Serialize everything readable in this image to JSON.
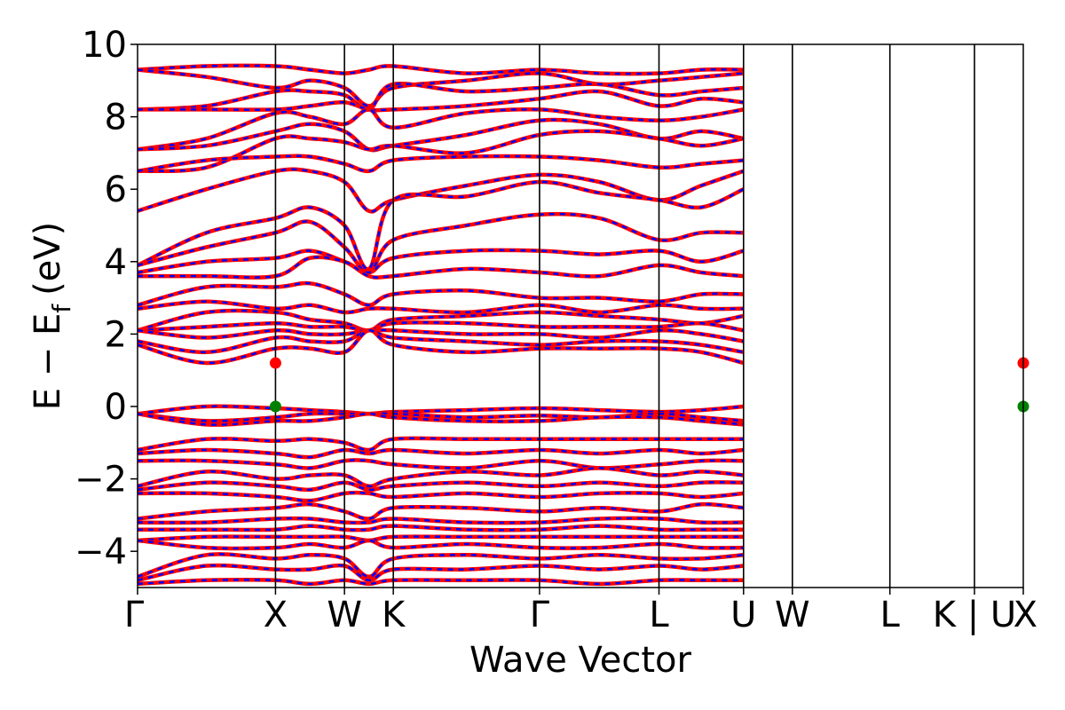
{
  "chart_data": {
    "type": "line",
    "title": "",
    "xlabel": "Wave Vector",
    "ylabel": "E − E",
    "ylabel_subscript": "f",
    "ylabel_unit": "(eV)",
    "ylim": [
      -5,
      10
    ],
    "yticks": [
      10,
      8,
      6,
      4,
      2,
      0,
      -2,
      -4
    ],
    "ytick_labels": [
      "10",
      "8",
      "6",
      "4",
      "2",
      "0",
      "−2",
      "−4"
    ],
    "kpath": [
      {
        "label": "Γ",
        "x": 0.0
      },
      {
        "label": "X",
        "x": 1.0
      },
      {
        "label": "W",
        "x": 1.5
      },
      {
        "label": "K",
        "x": 1.854
      },
      {
        "label": "Γ",
        "x": 2.914
      },
      {
        "label": "L",
        "x": 3.78
      },
      {
        "label": "U",
        "x": 4.393
      },
      {
        "label": "W",
        "x": 4.747
      },
      {
        "label": "L",
        "x": 5.454
      },
      {
        "label": "K | U",
        "x": 6.067
      },
      {
        "label": "X",
        "x": 6.421
      }
    ],
    "xlim": [
      0,
      6.421
    ],
    "grid": false,
    "legend": "none",
    "colors": {
      "band_solid": "#ff0000",
      "band_dashed": "#0000ff",
      "cbm_marker": "#ff0000",
      "vbm_marker": "#008000"
    },
    "markers": [
      {
        "name": "CBM",
        "x": 1.0,
        "y": 1.2,
        "color": "#ff0000"
      },
      {
        "name": "VBM",
        "x": 1.0,
        "y": 0.0,
        "color": "#008000"
      },
      {
        "name": "CBM",
        "x": 6.421,
        "y": 1.2,
        "color": "#ff0000"
      },
      {
        "name": "VBM",
        "x": 6.421,
        "y": 0.0,
        "color": "#008000"
      }
    ],
    "series": [
      {
        "y": [
          9.3,
          9.4,
          9.4,
          9.3,
          9.2,
          9.3,
          9.4,
          9.2,
          9.3,
          9.2,
          9.2,
          9.3,
          9.3
        ]
      },
      {
        "y": [
          9.3,
          9.1,
          8.8,
          9.0,
          8.8,
          8.3,
          8.8,
          9.0,
          9.2,
          8.9,
          9.0,
          9.1,
          9.2
        ]
      },
      {
        "y": [
          8.2,
          8.3,
          8.7,
          8.7,
          8.6,
          8.2,
          8.9,
          8.7,
          8.8,
          8.9,
          8.6,
          8.7,
          8.8
        ]
      },
      {
        "y": [
          8.2,
          8.2,
          8.2,
          8.3,
          8.4,
          8.2,
          8.2,
          8.3,
          8.5,
          8.7,
          8.3,
          8.5,
          8.4
        ]
      },
      {
        "y": [
          7.1,
          7.4,
          8.1,
          8.0,
          7.8,
          8.2,
          7.7,
          8.1,
          8.2,
          8.0,
          7.9,
          8.0,
          8.2
        ]
      },
      {
        "y": [
          7.1,
          7.2,
          7.6,
          7.8,
          7.6,
          7.1,
          7.2,
          7.5,
          7.9,
          7.8,
          7.4,
          7.6,
          7.4
        ]
      },
      {
        "y": [
          6.5,
          6.6,
          7.4,
          7.4,
          7.3,
          7.1,
          7.2,
          7.0,
          7.5,
          7.6,
          7.4,
          7.2,
          7.4
        ]
      },
      {
        "y": [
          6.5,
          6.8,
          6.9,
          6.9,
          6.7,
          6.5,
          6.8,
          6.9,
          6.9,
          6.8,
          6.6,
          6.7,
          6.8
        ]
      },
      {
        "y": [
          5.4,
          6.0,
          6.5,
          6.5,
          6.2,
          5.4,
          5.7,
          6.1,
          6.4,
          6.2,
          5.7,
          6.1,
          6.5
        ]
      },
      {
        "y": [
          3.9,
          4.8,
          5.2,
          5.5,
          5.0,
          3.8,
          5.7,
          5.8,
          6.2,
          5.9,
          5.7,
          5.5,
          6.0
        ]
      },
      {
        "y": [
          3.9,
          4.4,
          4.8,
          5.1,
          4.4,
          3.7,
          4.6,
          5.0,
          5.3,
          5.2,
          4.6,
          4.8,
          4.8
        ]
      },
      {
        "y": [
          3.7,
          4.0,
          4.1,
          4.3,
          4.0,
          3.7,
          4.1,
          4.3,
          4.3,
          4.2,
          4.3,
          4.0,
          4.3
        ]
      },
      {
        "y": [
          3.6,
          3.6,
          3.6,
          4.1,
          4.0,
          3.6,
          3.6,
          3.8,
          3.7,
          3.6,
          3.9,
          3.7,
          3.6
        ]
      },
      {
        "y": [
          2.8,
          3.3,
          3.3,
          3.4,
          3.1,
          2.8,
          3.1,
          3.2,
          3.0,
          3.0,
          2.9,
          3.1,
          3.1
        ]
      },
      {
        "y": [
          2.7,
          2.9,
          2.7,
          2.8,
          2.6,
          2.7,
          2.7,
          2.6,
          2.8,
          2.6,
          2.8,
          2.7,
          2.7
        ]
      },
      {
        "y": [
          2.1,
          2.6,
          2.6,
          2.4,
          2.3,
          2.1,
          2.4,
          2.5,
          2.6,
          2.5,
          2.4,
          2.3,
          2.5
        ]
      },
      {
        "y": [
          2.1,
          2.2,
          2.3,
          2.2,
          2.2,
          2.1,
          2.3,
          2.3,
          2.2,
          2.2,
          2.2,
          2.3,
          2.1
        ]
      },
      {
        "y": [
          2.1,
          1.9,
          2.1,
          2.0,
          2.0,
          2.1,
          2.1,
          2.0,
          2.0,
          1.9,
          2.1,
          2.0,
          1.8
        ]
      },
      {
        "y": [
          1.8,
          1.5,
          1.9,
          1.8,
          1.8,
          2.1,
          1.9,
          1.8,
          1.7,
          1.8,
          1.8,
          1.7,
          1.5
        ]
      },
      {
        "y": [
          1.7,
          1.2,
          1.6,
          1.6,
          1.5,
          2.1,
          1.7,
          1.5,
          1.6,
          1.6,
          1.6,
          1.5,
          1.2
        ]
      },
      {
        "y": [
          -0.2,
          0.0,
          -0.05,
          -0.1,
          -0.15,
          -0.2,
          -0.15,
          -0.1,
          -0.05,
          -0.1,
          -0.15,
          -0.1,
          0.0
        ]
      },
      {
        "y": [
          -0.2,
          -0.4,
          -0.3,
          -0.2,
          -0.2,
          -0.2,
          -0.2,
          -0.3,
          -0.25,
          -0.3,
          -0.2,
          -0.3,
          -0.4
        ]
      },
      {
        "y": [
          -0.2,
          -0.5,
          -0.4,
          -0.4,
          -0.3,
          -0.2,
          -0.3,
          -0.4,
          -0.4,
          -0.3,
          -0.3,
          -0.4,
          -0.5
        ]
      },
      {
        "y": [
          -1.2,
          -0.9,
          -0.95,
          -0.9,
          -1.0,
          -1.2,
          -0.9,
          -0.9,
          -0.9,
          -0.9,
          -0.9,
          -0.9,
          -0.9
        ]
      },
      {
        "y": [
          -1.3,
          -1.2,
          -1.3,
          -1.4,
          -1.2,
          -1.3,
          -1.2,
          -1.3,
          -1.2,
          -1.3,
          -1.2,
          -1.3,
          -1.2
        ]
      },
      {
        "y": [
          -1.5,
          -1.5,
          -1.6,
          -1.7,
          -1.5,
          -1.5,
          -1.6,
          -1.7,
          -1.5,
          -1.7,
          -1.6,
          -1.5,
          -1.5
        ]
      },
      {
        "y": [
          -2.2,
          -1.8,
          -2.0,
          -1.9,
          -1.9,
          -2.2,
          -2.0,
          -1.8,
          -1.9,
          -1.7,
          -1.9,
          -1.8,
          -1.9
        ]
      },
      {
        "y": [
          -2.3,
          -2.1,
          -2.2,
          -2.3,
          -2.1,
          -2.3,
          -2.2,
          -2.1,
          -2.2,
          -2.1,
          -2.2,
          -2.1,
          -2.1
        ]
      },
      {
        "y": [
          -2.4,
          -2.4,
          -2.5,
          -2.6,
          -2.4,
          -2.4,
          -2.5,
          -2.4,
          -2.5,
          -2.4,
          -2.4,
          -2.5,
          -2.4
        ]
      },
      {
        "y": [
          -3.1,
          -2.9,
          -2.8,
          -2.7,
          -2.9,
          -3.1,
          -2.8,
          -2.8,
          -2.9,
          -2.8,
          -2.9,
          -2.7,
          -2.8
        ]
      },
      {
        "y": [
          -3.2,
          -3.2,
          -3.1,
          -3.1,
          -3.2,
          -3.2,
          -3.1,
          -3.2,
          -3.2,
          -3.1,
          -3.1,
          -3.2,
          -3.2
        ]
      },
      {
        "y": [
          -3.4,
          -3.4,
          -3.4,
          -3.3,
          -3.4,
          -3.4,
          -3.3,
          -3.4,
          -3.4,
          -3.3,
          -3.4,
          -3.4,
          -3.4
        ]
      },
      {
        "y": [
          -3.7,
          -3.6,
          -3.6,
          -3.6,
          -3.6,
          -3.7,
          -3.6,
          -3.6,
          -3.6,
          -3.6,
          -3.6,
          -3.6,
          -3.6
        ]
      },
      {
        "y": [
          -3.7,
          -3.9,
          -3.9,
          -3.8,
          -3.9,
          -3.7,
          -3.9,
          -3.8,
          -3.9,
          -3.9,
          -3.8,
          -3.9,
          -3.9
        ]
      },
      {
        "y": [
          -4.7,
          -4.1,
          -4.2,
          -4.1,
          -4.2,
          -4.7,
          -4.2,
          -4.1,
          -4.2,
          -4.1,
          -4.2,
          -4.2,
          -4.1
        ]
      },
      {
        "y": [
          -4.8,
          -4.4,
          -4.5,
          -4.5,
          -4.4,
          -4.8,
          -4.5,
          -4.5,
          -4.4,
          -4.5,
          -4.4,
          -4.5,
          -4.4
        ]
      },
      {
        "y": [
          -4.9,
          -4.8,
          -4.8,
          -4.9,
          -4.8,
          -4.9,
          -4.8,
          -4.8,
          -4.8,
          -4.9,
          -4.8,
          -4.8,
          -4.8
        ]
      }
    ]
  }
}
